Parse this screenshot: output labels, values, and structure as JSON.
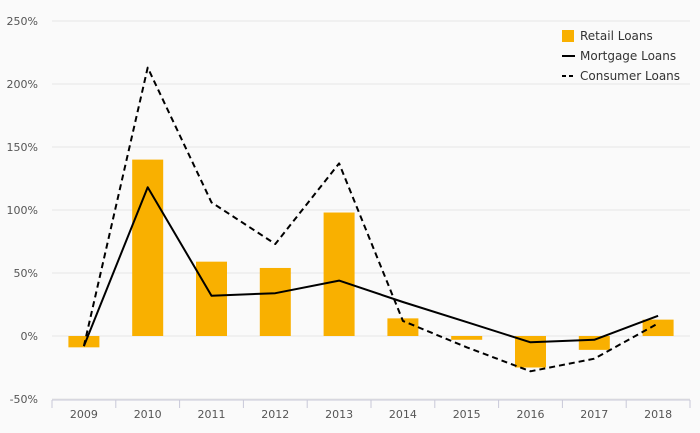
{
  "chart_data": {
    "type": "bar",
    "categories": [
      "2009",
      "2010",
      "2011",
      "2012",
      "2013",
      "2014",
      "2015",
      "2016",
      "2017",
      "2018"
    ],
    "series": [
      {
        "name": "Retail Loans",
        "type": "bar",
        "color": "#f9b000",
        "values": [
          -9,
          140,
          59,
          54,
          98,
          14,
          -3,
          -25,
          -11,
          13
        ]
      },
      {
        "name": "Mortgage Loans",
        "type": "line",
        "style": "solid",
        "color": "#000000",
        "values": [
          -8,
          118,
          32,
          34,
          44,
          27,
          11,
          -5,
          -3,
          16
        ]
      },
      {
        "name": "Consumer Loans",
        "type": "line",
        "style": "dashed",
        "color": "#000000",
        "values": [
          -8,
          213,
          106,
          73,
          137,
          12,
          -9,
          -28,
          -18,
          10
        ]
      }
    ],
    "yticks": [
      -50,
      0,
      50,
      100,
      150,
      200,
      250
    ],
    "ytick_labels": [
      "-50%",
      "0%",
      "50%",
      "100%",
      "150%",
      "200%",
      "250%"
    ],
    "ylim": [
      -50,
      250
    ],
    "grid": true,
    "legend": "top-right"
  }
}
